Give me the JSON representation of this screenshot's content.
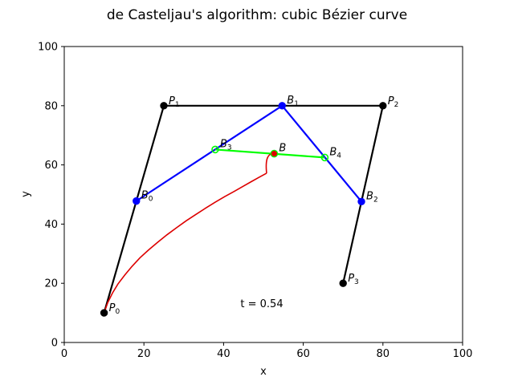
{
  "chart_data": {
    "type": "line",
    "title": "de Casteljau's algorithm: cubic Bézier curve",
    "xlabel": "x",
    "ylabel": "y",
    "xlim": [
      0,
      100
    ],
    "ylim": [
      0,
      100
    ],
    "xticks": [
      "0",
      "20",
      "40",
      "60",
      "80",
      "100"
    ],
    "yticks": [
      "0",
      "20",
      "40",
      "60",
      "80",
      "100"
    ],
    "grid": false,
    "annotation": "t = 0.54",
    "colors": {
      "control_polygon": "#000000",
      "level1": "#0000ff",
      "level2": "#00ff00",
      "curve": "#dd0000",
      "point_B": "#dd0000"
    },
    "control_points": [
      {
        "name": "P",
        "sub": "0",
        "x": 10,
        "y": 10
      },
      {
        "name": "P",
        "sub": "1",
        "x": 25,
        "y": 80
      },
      {
        "name": "P",
        "sub": "2",
        "x": 80,
        "y": 80
      },
      {
        "name": "P",
        "sub": "3",
        "x": 70,
        "y": 20
      }
    ],
    "level1_points": [
      {
        "name": "B",
        "sub": "0",
        "x": 18.1,
        "y": 47.8
      },
      {
        "name": "B",
        "sub": "1",
        "x": 54.7,
        "y": 80
      },
      {
        "name": "B",
        "sub": "2",
        "x": 74.6,
        "y": 47.6
      }
    ],
    "level2_points": [
      {
        "name": "B",
        "sub": "3",
        "x": 37.9,
        "y": 65.2
      },
      {
        "name": "B",
        "sub": "4",
        "x": 65.4,
        "y": 62.5
      }
    ],
    "point_B": {
      "name": "B",
      "sub": "",
      "x": 52.7,
      "y": 63.8
    },
    "curve": {
      "x": [
        10,
        10.9,
        12.1,
        13.5,
        15.2,
        17.0,
        19.0,
        21.2,
        23.5,
        25.8,
        28.2,
        30.6,
        33.1,
        35.5,
        37.9,
        40.3,
        42.6,
        44.8,
        46.9,
        48.9,
        50.8,
        52.7
      ],
      "y": [
        10,
        13.4,
        16.7,
        19.8,
        22.8,
        25.7,
        28.6,
        31.3,
        33.9,
        36.4,
        38.8,
        41.1,
        43.3,
        45.4,
        47.4,
        49.3,
        51.0,
        52.7,
        54.3,
        55.8,
        57.2,
        63.8
      ]
    }
  }
}
